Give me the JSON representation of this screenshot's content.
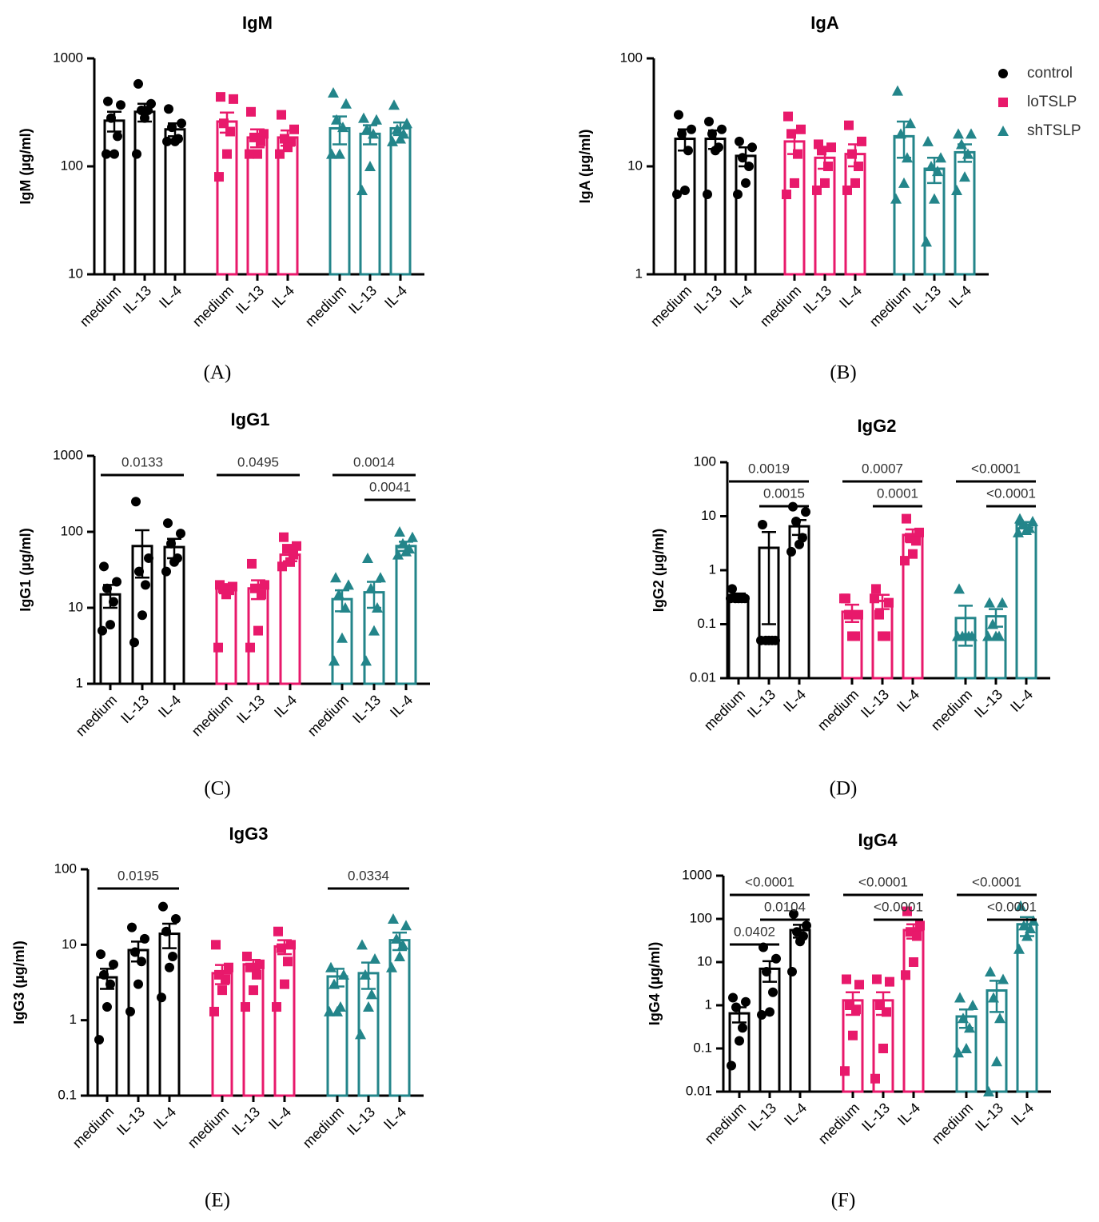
{
  "chart_data": [
    {
      "type": "bar",
      "title": "IgM",
      "ylabel": "IgM (µg/ml)",
      "panel": "(A)",
      "log_scale": true,
      "ylim": [
        10,
        1000
      ],
      "yticks": [
        10,
        100,
        1000
      ],
      "categories": [
        "medium",
        "IL-13",
        "IL-4"
      ],
      "series": [
        {
          "color": "#000000",
          "marker": "circle",
          "values": [
            265,
            320,
            220
          ],
          "errors": [
            55,
            60,
            30
          ],
          "points": [
            [
              400,
              370,
              280,
              190,
              130,
              130
            ],
            [
              580,
              380,
              330,
              330,
              280,
              130
            ],
            [
              340,
              250,
              230,
              180,
              170,
              170
            ]
          ]
        },
        {
          "color": "#e8196b",
          "marker": "square",
          "values": [
            260,
            185,
            185
          ],
          "errors": [
            55,
            35,
            30
          ],
          "points": [
            [
              440,
              420,
              250,
              210,
              130,
              80
            ],
            [
              320,
              200,
              185,
              170,
              130,
              130
            ],
            [
              300,
              220,
              180,
              170,
              150,
              130
            ]
          ]
        },
        {
          "color": "#23858a",
          "marker": "triangle",
          "values": [
            225,
            200,
            225
          ],
          "errors": [
            65,
            40,
            30
          ],
          "points": [
            [
              480,
              380,
              270,
              230,
              130,
              130
            ],
            [
              280,
              270,
              220,
              200,
              100,
              60
            ],
            [
              370,
              250,
              220,
              200,
              180,
              170
            ]
          ]
        }
      ],
      "comparisons": []
    },
    {
      "type": "bar",
      "title": "IgA",
      "ylabel": "IgA (µg/ml)",
      "panel": "(B)",
      "log_scale": true,
      "ylim": [
        1,
        100
      ],
      "yticks": [
        1,
        10,
        100
      ],
      "categories": [
        "medium",
        "IL-13",
        "IL-4"
      ],
      "legend": "upper right",
      "series": [
        {
          "name": "control",
          "color": "#000000",
          "marker": "circle",
          "values": [
            18,
            18,
            12.5
          ],
          "errors": [
            4,
            3.5,
            2.5
          ],
          "points": [
            [
              30,
              22,
              20,
              14,
              6,
              5.5
            ],
            [
              26,
              22,
              20,
              15,
              14,
              5.5
            ],
            [
              17,
              15,
              12,
              10,
              7,
              5.5
            ]
          ]
        },
        {
          "name": "loTSLP",
          "color": "#e8196b",
          "marker": "square",
          "values": [
            17,
            12,
            13
          ],
          "errors": [
            4,
            2.5,
            3
          ],
          "points": [
            [
              29,
              22,
              20,
              13,
              7,
              5.5
            ],
            [
              16,
              15,
              14,
              10,
              7,
              6
            ],
            [
              24,
              17,
              13,
              10,
              7,
              6
            ]
          ]
        },
        {
          "name": "shTSLP",
          "color": "#23858a",
          "marker": "triangle",
          "values": [
            19,
            9.5,
            13.5
          ],
          "errors": [
            7,
            2.5,
            2.5
          ],
          "points": [
            [
              50,
              25,
              20,
              12,
              7,
              5
            ],
            [
              17,
              12,
              10,
              9,
              5,
              2
            ],
            [
              20,
              20,
              16,
              13,
              8,
              6
            ]
          ]
        }
      ],
      "comparisons": []
    },
    {
      "type": "bar",
      "title": "IgG1",
      "ylabel": "IgG1 (µg/ml)",
      "panel": "(C)",
      "log_scale": true,
      "ylim": [
        1,
        1000
      ],
      "yticks": [
        1,
        10,
        100,
        1000
      ],
      "categories": [
        "medium",
        "IL-13",
        "IL-4"
      ],
      "series": [
        {
          "color": "#000000",
          "marker": "circle",
          "values": [
            15,
            65,
            63
          ],
          "errors": [
            5,
            40,
            18
          ],
          "points": [
            [
              35,
              22,
              18,
              12,
              6,
              5
            ],
            [
              250,
              45,
              30,
              20,
              8,
              3.5
            ],
            [
              130,
              95,
              70,
              45,
              40,
              30
            ]
          ]
        },
        {
          "color": "#e8196b",
          "marker": "square",
          "values": [
            18,
            18,
            50
          ],
          "errors": [
            2.5,
            5,
            9
          ],
          "points": [
            [
              20,
              19,
              18,
              17,
              15,
              3
            ],
            [
              38,
              20,
              18,
              15,
              5,
              3
            ],
            [
              85,
              65,
              60,
              50,
              40,
              35
            ]
          ]
        },
        {
          "color": "#23858a",
          "marker": "triangle",
          "values": [
            13,
            16,
            65
          ],
          "errors": [
            4,
            6,
            9
          ],
          "points": [
            [
              25,
              20,
              15,
              10,
              4,
              2
            ],
            [
              45,
              25,
              18,
              10,
              5,
              2
            ],
            [
              100,
              85,
              70,
              60,
              55,
              50
            ]
          ]
        }
      ],
      "comparisons": [
        {
          "series": 0,
          "from": 0,
          "to": 2,
          "label": "0.0133"
        },
        {
          "series": 1,
          "from": 0,
          "to": 2,
          "label": "0.0495"
        },
        {
          "series": 2,
          "from": 0,
          "to": 2,
          "label": "0.0014"
        },
        {
          "series": 2,
          "from": 1,
          "to": 2,
          "label": "0.0041"
        }
      ]
    },
    {
      "type": "bar",
      "title": "IgG2",
      "ylabel": "IgG2 (µg/ml)",
      "panel": "(D)",
      "log_scale": true,
      "ylim": [
        0.01,
        100
      ],
      "yticks": [
        0.01,
        0.1,
        1,
        10,
        100
      ],
      "categories": [
        "medium",
        "IL-13",
        "IL-4"
      ],
      "series": [
        {
          "color": "#000000",
          "marker": "circle",
          "values": [
            0.32,
            2.6,
            6.5
          ],
          "errors": [
            0.05,
            2.5,
            2
          ],
          "points": [
            [
              0.45,
              0.3,
              0.3,
              0.3,
              0.3,
              0.3
            ],
            [
              7,
              0.05,
              0.05,
              0.05,
              0.05,
              0.05
            ],
            [
              15,
              12,
              8,
              4,
              3,
              2.2
            ]
          ]
        },
        {
          "color": "#e8196b",
          "marker": "square",
          "values": [
            0.17,
            0.27,
            4.5
          ],
          "errors": [
            0.06,
            0.08,
            1.2
          ],
          "points": [
            [
              0.3,
              0.15,
              0.15,
              0.06,
              0.06,
              0.3
            ],
            [
              0.45,
              0.25,
              0.15,
              0.06,
              0.06,
              0.3
            ],
            [
              9,
              5,
              4,
              3.5,
              2,
              1.5
            ]
          ]
        },
        {
          "color": "#23858a",
          "marker": "triangle",
          "values": [
            0.13,
            0.14,
            7
          ],
          "errors": [
            0.09,
            0.05,
            0.8
          ],
          "points": [
            [
              0.45,
              0.06,
              0.06,
              0.06,
              0.06,
              0.06
            ],
            [
              0.25,
              0.25,
              0.1,
              0.06,
              0.06,
              0.06
            ],
            [
              9,
              8,
              7,
              6,
              5.5,
              5
            ]
          ]
        }
      ],
      "comparisons": [
        {
          "series": 0,
          "from": 0,
          "to": 2,
          "label": "0.0019"
        },
        {
          "series": 0,
          "from": 1,
          "to": 2,
          "label": "0.0015"
        },
        {
          "series": 1,
          "from": 0,
          "to": 2,
          "label": "0.0007"
        },
        {
          "series": 1,
          "from": 1,
          "to": 2,
          "label": "0.0001"
        },
        {
          "series": 2,
          "from": 0,
          "to": 2,
          "label": "<0.0001"
        },
        {
          "series": 2,
          "from": 1,
          "to": 2,
          "label": "<0.0001"
        }
      ]
    },
    {
      "type": "bar",
      "title": "IgG3",
      "ylabel": "IgG3 (µg/ml)",
      "panel": "(E)",
      "log_scale": true,
      "ylim": [
        0.1,
        100
      ],
      "yticks": [
        0.1,
        1,
        10,
        100
      ],
      "categories": [
        "medium",
        "IL-13",
        "IL-4"
      ],
      "series": [
        {
          "color": "#000000",
          "marker": "circle",
          "values": [
            3.7,
            8.5,
            14
          ],
          "errors": [
            1.1,
            2.5,
            5
          ],
          "points": [
            [
              7.5,
              5.5,
              4,
              3,
              1.5,
              0.55
            ],
            [
              17,
              12,
              8,
              6,
              3,
              1.3
            ],
            [
              32,
              22,
              15,
              7,
              5,
              2
            ]
          ]
        },
        {
          "color": "#e8196b",
          "marker": "square",
          "values": [
            4.2,
            5.5,
            9.5
          ],
          "errors": [
            1.2,
            0.8,
            2
          ],
          "points": [
            [
              10,
              5,
              4,
              3.5,
              2.5,
              1.3
            ],
            [
              7,
              5.5,
              5,
              4,
              2.5,
              1.5
            ],
            [
              15,
              10,
              9,
              6,
              3,
              1.5
            ]
          ]
        },
        {
          "color": "#23858a",
          "marker": "triangle",
          "values": [
            3.8,
            4.2,
            11.5
          ],
          "errors": [
            1,
            1.6,
            3
          ],
          "points": [
            [
              5,
              4,
              3,
              1.5,
              1.3,
              1.3
            ],
            [
              10,
              6.5,
              4,
              2.2,
              1.5,
              0.65
            ],
            [
              22,
              18,
              12,
              10,
              7,
              5
            ]
          ]
        }
      ],
      "comparisons": [
        {
          "series": 0,
          "from": 0,
          "to": 2,
          "label": "0.0195"
        },
        {
          "series": 2,
          "from": 0,
          "to": 2,
          "label": "0.0334"
        }
      ]
    },
    {
      "type": "bar",
      "title": "IgG4",
      "ylabel": "IgG4 (µg/ml)",
      "panel": "(F)",
      "log_scale": true,
      "ylim": [
        0.01,
        1000
      ],
      "yticks": [
        0.01,
        0.1,
        1,
        10,
        100,
        1000
      ],
      "categories": [
        "medium",
        "IL-13",
        "IL-4"
      ],
      "series": [
        {
          "color": "#000000",
          "marker": "circle",
          "values": [
            0.65,
            7,
            55
          ],
          "errors": [
            0.25,
            3.5,
            18
          ],
          "points": [
            [
              1.5,
              1.2,
              0.9,
              0.3,
              0.15,
              0.04
            ],
            [
              22,
              12,
              6,
              2,
              0.7,
              0.6
            ],
            [
              130,
              70,
              50,
              40,
              30,
              6
            ]
          ]
        },
        {
          "color": "#e8196b",
          "marker": "square",
          "values": [
            1.3,
            1.3,
            55
          ],
          "errors": [
            0.7,
            0.7,
            20
          ],
          "points": [
            [
              4,
              3,
              1,
              0.8,
              0.2,
              0.03
            ],
            [
              4,
              3.5,
              1,
              0.7,
              0.1,
              0.02
            ],
            [
              150,
              70,
              50,
              40,
              10,
              5
            ]
          ]
        },
        {
          "color": "#23858a",
          "marker": "triangle",
          "values": [
            0.55,
            2.2,
            75
          ],
          "errors": [
            0.25,
            1.5,
            35
          ],
          "points": [
            [
              1.5,
              1,
              0.5,
              0.3,
              0.1,
              0.08
            ],
            [
              6,
              4,
              1.5,
              0.5,
              0.05,
              0.01
            ],
            [
              200,
              90,
              70,
              60,
              40,
              20
            ]
          ]
        }
      ],
      "comparisons": [
        {
          "series": 0,
          "from": 0,
          "to": 2,
          "label": "<0.0001"
        },
        {
          "series": 0,
          "from": 1,
          "to": 2,
          "label": "0.0104"
        },
        {
          "series": 0,
          "from": 0,
          "to": 1,
          "label": "0.0402"
        },
        {
          "series": 1,
          "from": 0,
          "to": 2,
          "label": "<0.0001"
        },
        {
          "series": 1,
          "from": 1,
          "to": 2,
          "label": "<0.0001"
        },
        {
          "series": 2,
          "from": 0,
          "to": 2,
          "label": "<0.0001"
        },
        {
          "series": 2,
          "from": 1,
          "to": 2,
          "label": "<0.0001"
        }
      ]
    }
  ]
}
